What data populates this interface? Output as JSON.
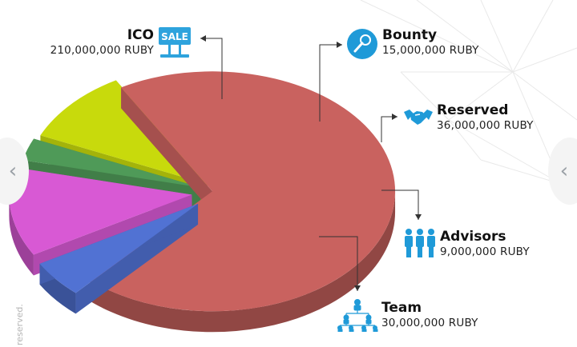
{
  "chart_data": {
    "type": "pie",
    "unit": "RUBY",
    "slices": [
      {
        "name": "ICO",
        "value": 210000000,
        "value_label": "210,000,000 RUBY",
        "color": "#c9625f",
        "icon": "sale-sign-icon"
      },
      {
        "name": "Bounty",
        "value": 15000000,
        "value_label": "15,000,000 RUBY",
        "color": "#5172d3",
        "icon": "microphone-icon"
      },
      {
        "name": "Reserved",
        "value": 36000000,
        "value_label": "36,000,000 RUBY",
        "color": "#d859d4",
        "icon": "handshake-icon"
      },
      {
        "name": "Advisors",
        "value": 9000000,
        "value_label": "9,000,000 RUBY",
        "color": "#4f9a58",
        "icon": "people-group-icon"
      },
      {
        "name": "Team",
        "value": 30000000,
        "value_label": "30,000,000 RUBY",
        "color": "#c8da0c",
        "icon": "org-chart-icon"
      }
    ]
  },
  "icons": {
    "sale_text": "SALE"
  },
  "nav": {
    "prev_glyph": "‹",
    "next_glyph": "‹"
  },
  "footer_note": "reserved."
}
